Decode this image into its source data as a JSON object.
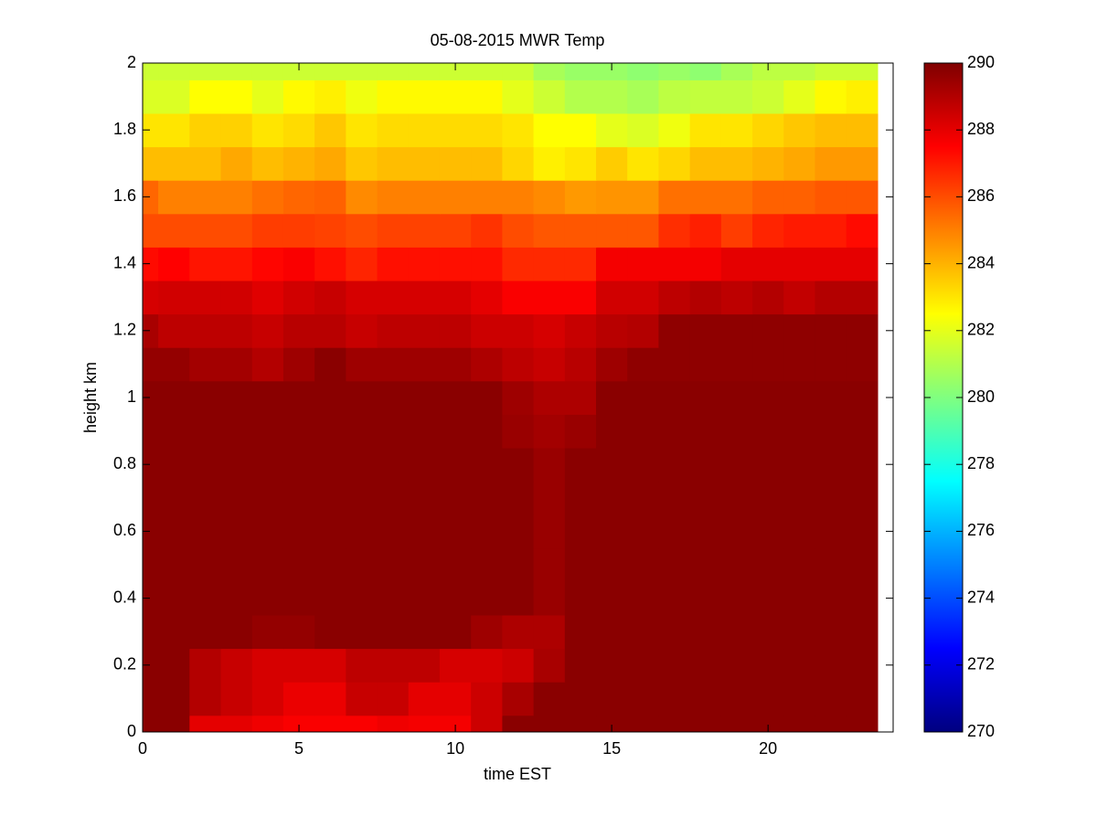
{
  "chart_data": {
    "type": "heatmap",
    "title": "05-08-2015 MWR Temp",
    "x_label": "time EST",
    "y_label": "height km",
    "x": [
      0,
      1,
      2,
      3,
      4,
      5,
      6,
      7,
      8,
      9,
      10,
      11,
      12,
      13,
      14,
      15,
      16,
      17,
      18,
      19,
      20,
      21,
      22,
      23
    ],
    "y": [
      0,
      0.1,
      0.2,
      0.3,
      0.4,
      0.5,
      0.6,
      0.7,
      0.8,
      0.9,
      1.0,
      1.1,
      1.2,
      1.3,
      1.4,
      1.5,
      1.6,
      1.7,
      1.8,
      1.9,
      2.0
    ],
    "z": [
      [
        289.8,
        289.8,
        288,
        288,
        287.8,
        287.6,
        287.6,
        287.6,
        287.8,
        287.7,
        287.7,
        288.5,
        289.8,
        289.8,
        289.8,
        289.8,
        289.8,
        289.8,
        289.8,
        289.8,
        289.8,
        289.8,
        289.8,
        289.8
      ],
      [
        289.8,
        289.8,
        289,
        288.6,
        288.3,
        287.9,
        287.9,
        288.6,
        288.6,
        288,
        288,
        288.5,
        289.2,
        289.8,
        289.8,
        289.8,
        289.8,
        289.8,
        289.8,
        289.8,
        289.8,
        289.8,
        289.8,
        289.8
      ],
      [
        289.8,
        289.8,
        289,
        288.6,
        288.3,
        288.3,
        288.3,
        288.8,
        288.8,
        288.8,
        288.3,
        288.3,
        288.5,
        289.2,
        289.8,
        289.8,
        289.8,
        289.8,
        289.8,
        289.8,
        289.8,
        289.8,
        289.8,
        289.8
      ],
      [
        289.8,
        289.8,
        289.8,
        289.8,
        289.6,
        289.6,
        289.8,
        289.8,
        289.8,
        289.8,
        289.8,
        289.4,
        289.1,
        289.1,
        289.8,
        289.8,
        289.8,
        289.8,
        289.8,
        289.8,
        289.8,
        289.8,
        289.8,
        289.8
      ],
      [
        289.8,
        289.8,
        289.8,
        289.8,
        289.8,
        289.8,
        289.8,
        289.8,
        289.8,
        289.8,
        289.8,
        289.8,
        289.8,
        289.5,
        289.8,
        289.8,
        289.8,
        289.8,
        289.8,
        289.8,
        289.8,
        289.8,
        289.8,
        289.8
      ],
      [
        289.8,
        289.8,
        289.8,
        289.8,
        289.8,
        289.8,
        289.8,
        289.8,
        289.8,
        289.8,
        289.8,
        289.8,
        289.8,
        289.5,
        289.8,
        289.8,
        289.8,
        289.8,
        289.8,
        289.8,
        289.8,
        289.8,
        289.8,
        289.8
      ],
      [
        289.8,
        289.8,
        289.8,
        289.8,
        289.8,
        289.8,
        289.8,
        289.8,
        289.8,
        289.8,
        289.8,
        289.8,
        289.8,
        289.5,
        289.8,
        289.8,
        289.8,
        289.8,
        289.8,
        289.8,
        289.8,
        289.8,
        289.8,
        289.8
      ],
      [
        289.8,
        289.8,
        289.8,
        289.8,
        289.8,
        289.8,
        289.8,
        289.8,
        289.8,
        289.8,
        289.8,
        289.8,
        289.8,
        289.5,
        289.8,
        289.8,
        289.8,
        289.8,
        289.8,
        289.8,
        289.8,
        289.8,
        289.8,
        289.8
      ],
      [
        289.8,
        289.8,
        289.8,
        289.8,
        289.8,
        289.8,
        289.8,
        289.8,
        289.8,
        289.8,
        289.8,
        289.8,
        289.8,
        289.5,
        289.8,
        289.8,
        289.8,
        289.8,
        289.8,
        289.8,
        289.8,
        289.8,
        289.8,
        289.8
      ],
      [
        289.8,
        289.8,
        289.8,
        289.8,
        289.8,
        289.8,
        289.8,
        289.8,
        289.8,
        289.8,
        289.8,
        289.8,
        289.5,
        289.3,
        289.5,
        289.8,
        289.8,
        289.8,
        289.8,
        289.8,
        289.8,
        289.8,
        289.8,
        289.8
      ],
      [
        289.8,
        289.8,
        289.8,
        289.8,
        289.8,
        289.8,
        289.8,
        289.8,
        289.8,
        289.8,
        289.8,
        289.8,
        289.4,
        289.1,
        289.1,
        289.8,
        289.8,
        289.8,
        289.8,
        289.8,
        289.8,
        289.8,
        289.8,
        289.8
      ],
      [
        289.6,
        289.6,
        289.3,
        289.3,
        289,
        289.4,
        289.8,
        289.4,
        289.4,
        289.4,
        289.4,
        289.1,
        288.8,
        288.6,
        288.9,
        289.4,
        289.7,
        289.7,
        289.7,
        289.7,
        289.7,
        289.7,
        289.7,
        289.7
      ],
      [
        289.2,
        288.8,
        288.8,
        288.8,
        288.6,
        288.9,
        288.9,
        288.6,
        288.8,
        288.8,
        288.8,
        288.5,
        288.5,
        288.3,
        288.6,
        288.9,
        289,
        289.7,
        289.7,
        289.7,
        289.7,
        289.7,
        289.7,
        289.7
      ],
      [
        288.3,
        288.4,
        288.4,
        288.4,
        288.1,
        288.4,
        288.6,
        288.3,
        288.3,
        288.3,
        288.3,
        288,
        287.6,
        287.6,
        287.6,
        288.4,
        288.4,
        288.8,
        289,
        288.8,
        289,
        288.7,
        289,
        289
      ],
      [
        287.3,
        287.5,
        287.1,
        287.1,
        287.4,
        287.6,
        287.2,
        286.8,
        287.2,
        287.2,
        287.2,
        287.2,
        286.7,
        286.7,
        286.7,
        287.7,
        287.7,
        287.7,
        287.7,
        288,
        288,
        288,
        288,
        288
      ],
      [
        286,
        286,
        286,
        286,
        286.3,
        286.3,
        286.2,
        286,
        286.2,
        286.2,
        286.2,
        286.5,
        286,
        285.8,
        285.8,
        285.8,
        285.8,
        286.6,
        286.9,
        286.3,
        286.8,
        287,
        287,
        287.3
      ],
      [
        285.5,
        285,
        285,
        285,
        285.3,
        285.5,
        285.6,
        284.8,
        285,
        285,
        285,
        285,
        285,
        284.8,
        284.5,
        284.6,
        284.6,
        285.3,
        285.3,
        285.3,
        285.6,
        285.6,
        285.8,
        285.8
      ],
      [
        283.8,
        283.8,
        283.8,
        284.2,
        283.8,
        284,
        284.2,
        283.6,
        283.8,
        283.8,
        283.8,
        283.8,
        283.3,
        282.8,
        283,
        283.5,
        283,
        283.3,
        283.8,
        283.8,
        284,
        284.2,
        284.5,
        284.5
      ],
      [
        283,
        283,
        283.4,
        283.4,
        283,
        283.2,
        283.6,
        283,
        283.2,
        283.2,
        283.2,
        283.2,
        283,
        282.5,
        282.5,
        282,
        281.8,
        282.2,
        283,
        283,
        283.3,
        283.6,
        283.8,
        283.8
      ],
      [
        281.8,
        281.8,
        282.5,
        282.5,
        282,
        282.6,
        282.8,
        282.2,
        282.6,
        282.6,
        282.6,
        282.6,
        282,
        281.5,
        281,
        281,
        280.8,
        281.2,
        281.3,
        281.3,
        281.5,
        282,
        282.6,
        282.8
      ],
      [
        281.5,
        281.5,
        281.5,
        281.5,
        281.5,
        281.5,
        281.5,
        281.5,
        281.5,
        281.5,
        281.5,
        281.5,
        281.5,
        280.8,
        280.5,
        280.5,
        280.3,
        280.5,
        280.3,
        280.8,
        281.2,
        281.2,
        281.5,
        281.5
      ]
    ],
    "colormap": "jet",
    "xlim": [
      0,
      24
    ],
    "xticks": [
      0,
      5,
      10,
      15,
      20
    ],
    "ylim": [
      0,
      2
    ],
    "yticks": [
      0,
      0.2,
      0.4,
      0.6,
      0.8,
      1,
      1.2,
      1.4,
      1.6,
      1.8,
      2
    ],
    "clim": [
      270,
      290
    ],
    "cticks": [
      270,
      272,
      274,
      276,
      278,
      280,
      282,
      284,
      286,
      288,
      290
    ]
  }
}
